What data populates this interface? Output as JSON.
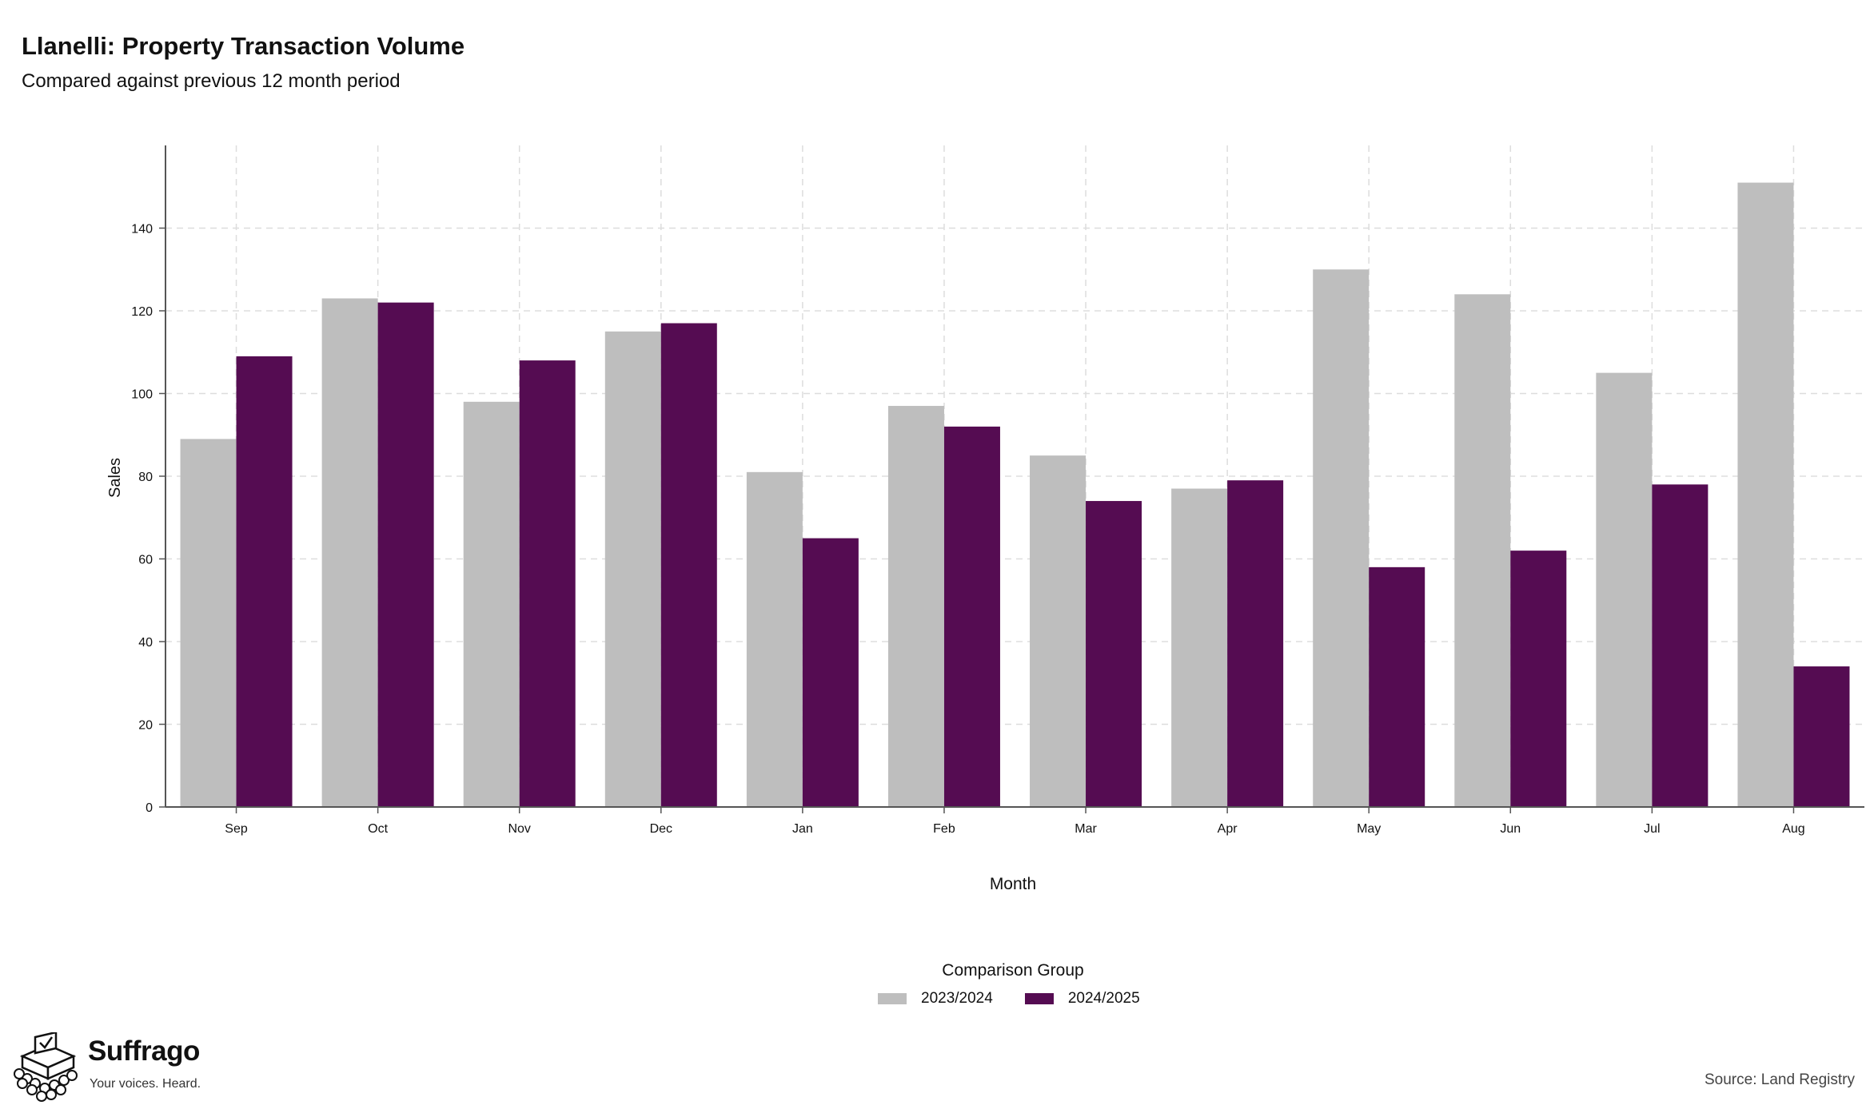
{
  "chart_data": {
    "type": "bar",
    "title": "Llanelli: Property Transaction Volume",
    "subtitle": "Compared against previous 12 month period",
    "xlabel": "Month",
    "ylabel": "Sales",
    "categories": [
      "Sep",
      "Oct",
      "Nov",
      "Dec",
      "Jan",
      "Feb",
      "Mar",
      "Apr",
      "May",
      "Jun",
      "Jul",
      "Aug"
    ],
    "series": [
      {
        "name": "2023/2024",
        "color": "#bebebe",
        "values": [
          89,
          123,
          98,
          115,
          81,
          97,
          85,
          77,
          130,
          124,
          105,
          151
        ]
      },
      {
        "name": "2024/2025",
        "color": "#550c52",
        "values": [
          109,
          122,
          108,
          117,
          65,
          92,
          74,
          79,
          58,
          62,
          78,
          34
        ]
      }
    ],
    "ylim": [
      0,
      160
    ],
    "yticks": [
      0,
      20,
      40,
      60,
      80,
      100,
      120,
      140
    ],
    "grid": true,
    "legend_title": "Comparison Group",
    "legend_position": "bottom-center",
    "source": "Source: Land Registry"
  },
  "branding": {
    "name": "Suffrago",
    "tagline": "Your voices. Heard."
  }
}
